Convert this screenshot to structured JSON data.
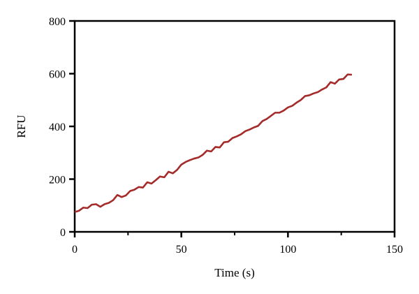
{
  "chart_data": {
    "type": "line",
    "title": "",
    "xlabel": "Time (s)",
    "ylabel": "RFU",
    "xlim": [
      0,
      150
    ],
    "ylim": [
      0,
      800
    ],
    "x_ticks": [
      "0",
      "50",
      "100",
      "150"
    ],
    "y_ticks": [
      "0",
      "200",
      "400",
      "600",
      "800"
    ],
    "grid": false,
    "legend": "none",
    "series": [
      {
        "color": "#a52a2a",
        "x": [
          0,
          2,
          4,
          6,
          8,
          10,
          12,
          14,
          16,
          18,
          20,
          22,
          24,
          26,
          28,
          30,
          32,
          34,
          36,
          38,
          40,
          42,
          44,
          46,
          48,
          50,
          52,
          54,
          56,
          58,
          60,
          62,
          64,
          66,
          68,
          70,
          72,
          74,
          76,
          78,
          80,
          82,
          84,
          86,
          88,
          90,
          92,
          94,
          96,
          98,
          100,
          102,
          104,
          106,
          108,
          110,
          112,
          114,
          116,
          118,
          120,
          122,
          124,
          126,
          128,
          130
        ],
        "y": [
          75,
          80,
          92,
          90,
          103,
          105,
          95,
          105,
          110,
          120,
          140,
          132,
          138,
          155,
          160,
          170,
          168,
          188,
          183,
          196,
          210,
          207,
          228,
          222,
          235,
          255,
          265,
          272,
          278,
          282,
          292,
          308,
          305,
          322,
          320,
          340,
          342,
          356,
          362,
          370,
          382,
          388,
          396,
          402,
          420,
          428,
          440,
          452,
          452,
          460,
          472,
          478,
          490,
          500,
          515,
          518,
          525,
          530,
          540,
          548,
          568,
          562,
          578,
          580,
          597,
          596
        ]
      }
    ]
  }
}
